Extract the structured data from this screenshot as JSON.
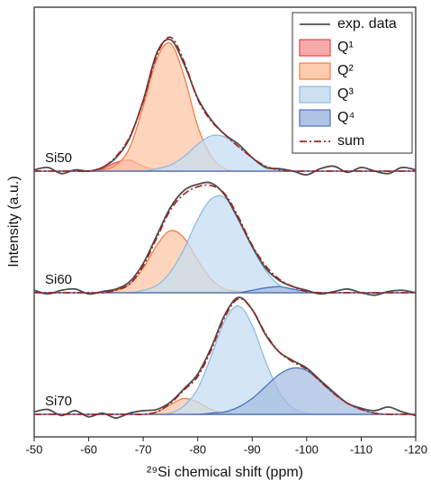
{
  "chart_data": {
    "type": "line",
    "xlabel": "²⁹Si chemical shift (ppm)",
    "ylabel": "Intensity (a.u.)",
    "panels": [
      "Si50",
      "Si60",
      "Si70"
    ],
    "x": [
      -50,
      -52.5,
      -55,
      -57.5,
      -60,
      -62.5,
      -65,
      -67.5,
      -70,
      -72.5,
      -75,
      -77.5,
      -80,
      -82.5,
      -85,
      -87.5,
      -90,
      -92.5,
      -95,
      -97.5,
      -100,
      -102.5,
      -105,
      -107.5,
      -110,
      -112.5,
      -115,
      -117.5,
      -120
    ],
    "xlim": [
      -50,
      -120
    ],
    "xticks": [
      -50,
      -60,
      -70,
      -80,
      -90,
      -100,
      -110,
      -120
    ],
    "ylim": [
      -0.1,
      1.15
    ],
    "legend": "upper right",
    "series": [
      {
        "name": "exp. data",
        "color": "#4d4d4d",
        "style": "solid",
        "values": [
          [
            0.01,
            0.03,
            -0.02,
            0.01,
            0.0,
            0.03,
            0.11,
            0.27,
            0.58,
            0.97,
            1.08,
            0.88,
            0.6,
            0.42,
            0.3,
            0.22,
            0.11,
            0.03,
            0.02,
            0.0,
            -0.03,
            0.02,
            0.04,
            -0.01,
            0.03,
            0.0,
            -0.02,
            0.03,
            0.01
          ],
          [
            0.02,
            -0.01,
            0.02,
            0.03,
            -0.01,
            0.01,
            0.03,
            0.09,
            0.24,
            0.47,
            0.7,
            0.84,
            0.89,
            0.9,
            0.8,
            0.6,
            0.38,
            0.2,
            0.1,
            0.05,
            0.02,
            -0.01,
            0.01,
            0.03,
            0.0,
            -0.02,
            0.01,
            0.02,
            0.0
          ],
          [
            0.02,
            0.04,
            -0.01,
            0.03,
            -0.02,
            0.01,
            -0.03,
            0.01,
            0.03,
            0.04,
            0.1,
            0.21,
            0.33,
            0.55,
            0.82,
            0.96,
            0.86,
            0.65,
            0.51,
            0.44,
            0.38,
            0.28,
            0.18,
            0.09,
            0.05,
            0.03,
            0.06,
            0.02,
            -0.01
          ]
        ]
      },
      {
        "name": "Q¹",
        "color": "#e8474a",
        "fill": "#f4a0a0",
        "values": [
          [
            0,
            0,
            0,
            0,
            0,
            0.02,
            0.07,
            0.09,
            0.04,
            0.01,
            0,
            0,
            0,
            0,
            0,
            0,
            0,
            0,
            0,
            0,
            0,
            0,
            0,
            0,
            0,
            0,
            0,
            0,
            0
          ],
          [
            0,
            0,
            0,
            0,
            0,
            0,
            0,
            0,
            0,
            0,
            0,
            0,
            0,
            0,
            0,
            0,
            0,
            0,
            0,
            0,
            0,
            0,
            0,
            0,
            0,
            0,
            0,
            0,
            0
          ],
          [
            0,
            0,
            0,
            0,
            0,
            0,
            0,
            0,
            0,
            0,
            0,
            0,
            0,
            0,
            0,
            0,
            0,
            0,
            0,
            0,
            0,
            0,
            0,
            0,
            0,
            0,
            0,
            0,
            0
          ]
        ]
      },
      {
        "name": "Q²",
        "color": "#f47c4a",
        "fill": "#fcc7a6",
        "values": [
          [
            0,
            0,
            0,
            0,
            0,
            0.01,
            0.05,
            0.19,
            0.53,
            0.92,
            1.05,
            0.78,
            0.37,
            0.12,
            0.02,
            0,
            0,
            0,
            0,
            0,
            0,
            0,
            0,
            0,
            0,
            0,
            0,
            0,
            0
          ],
          [
            0,
            0,
            0,
            0,
            0,
            0,
            0.02,
            0.07,
            0.2,
            0.39,
            0.51,
            0.45,
            0.27,
            0.11,
            0.03,
            0.01,
            0,
            0,
            0,
            0,
            0,
            0,
            0,
            0,
            0,
            0,
            0,
            0,
            0
          ],
          [
            0,
            0,
            0,
            0,
            0,
            0,
            0,
            0,
            0,
            0.02,
            0.08,
            0.13,
            0.1,
            0.04,
            0.01,
            0,
            0,
            0,
            0,
            0,
            0,
            0,
            0,
            0,
            0,
            0,
            0,
            0,
            0
          ]
        ]
      },
      {
        "name": "Q³",
        "color": "#8dbbe2",
        "fill": "#c6ddf1",
        "values": [
          [
            0,
            0,
            0,
            0,
            0,
            0,
            0,
            0,
            0,
            0.02,
            0.05,
            0.12,
            0.22,
            0.29,
            0.28,
            0.2,
            0.11,
            0.04,
            0.01,
            0,
            0,
            0,
            0,
            0,
            0,
            0,
            0,
            0,
            0
          ],
          [
            0,
            0,
            0,
            0,
            0,
            0,
            0,
            0,
            0.02,
            0.06,
            0.17,
            0.36,
            0.6,
            0.77,
            0.78,
            0.61,
            0.37,
            0.18,
            0.06,
            0.02,
            0,
            0,
            0,
            0,
            0,
            0,
            0,
            0,
            0
          ],
          [
            0,
            0,
            0,
            0,
            0,
            0,
            0,
            0,
            0,
            0,
            0.01,
            0.07,
            0.21,
            0.48,
            0.77,
            0.89,
            0.73,
            0.43,
            0.18,
            0.05,
            0.01,
            0,
            0,
            0,
            0,
            0,
            0,
            0,
            0
          ]
        ]
      },
      {
        "name": "Q⁴",
        "color": "#4a72b8",
        "fill": "#a7bde2",
        "values": [
          [
            0,
            0,
            0,
            0,
            0,
            0,
            0,
            0,
            0,
            0,
            0,
            0,
            0,
            0,
            0,
            0,
            0,
            0,
            0,
            0,
            0,
            0,
            0,
            0,
            0,
            0,
            0,
            0,
            0
          ],
          [
            0,
            0,
            0,
            0,
            0,
            0,
            0,
            0,
            0,
            0,
            0,
            0,
            0,
            0,
            0,
            0,
            0.02,
            0.04,
            0.05,
            0.03,
            0.01,
            0,
            0,
            0,
            0,
            0,
            0,
            0,
            0
          ],
          [
            0,
            0,
            0,
            0,
            0,
            0,
            0,
            0,
            0,
            0,
            0,
            0,
            0,
            0.01,
            0.02,
            0.06,
            0.13,
            0.23,
            0.33,
            0.38,
            0.36,
            0.27,
            0.17,
            0.09,
            0.04,
            0.01,
            0,
            0,
            0
          ]
        ]
      },
      {
        "name": "sum",
        "color": "#a3201e",
        "style": "dash-dot",
        "values": [
          [
            0,
            0,
            0,
            0,
            0,
            0.03,
            0.12,
            0.28,
            0.57,
            0.95,
            1.1,
            0.9,
            0.59,
            0.41,
            0.3,
            0.2,
            0.11,
            0.04,
            0.01,
            0,
            0,
            0,
            0,
            0,
            0,
            0,
            0,
            0,
            0
          ],
          [
            0,
            0,
            0,
            0,
            0,
            0,
            0.02,
            0.07,
            0.22,
            0.45,
            0.68,
            0.81,
            0.87,
            0.88,
            0.81,
            0.62,
            0.39,
            0.22,
            0.11,
            0.05,
            0.01,
            0,
            0,
            0,
            0,
            0,
            0,
            0,
            0
          ],
          [
            0,
            0,
            0,
            0,
            0,
            0,
            0,
            0,
            0,
            0.02,
            0.09,
            0.2,
            0.31,
            0.53,
            0.8,
            0.95,
            0.86,
            0.66,
            0.51,
            0.43,
            0.37,
            0.27,
            0.17,
            0.09,
            0.04,
            0.01,
            0,
            0,
            0
          ]
        ]
      }
    ]
  }
}
